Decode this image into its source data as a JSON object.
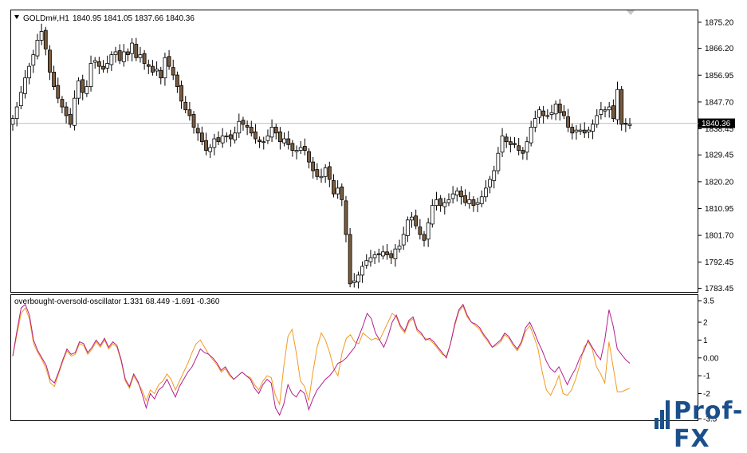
{
  "main_panel": {
    "symbol_label": "GOLDm#,H1",
    "ohlc_text": "1840.95 1841.05 1837.66 1840.36",
    "price_scale": [
      "1875.20",
      "1866.20",
      "1856.95",
      "1847.70",
      "1838.45",
      "1829.45",
      "1820.20",
      "1810.95",
      "1801.70",
      "1792.45",
      "1783.45"
    ],
    "current_price_label": "1840.36",
    "current_price": 1840.36,
    "ylim": [
      1782.2,
      1879.3
    ]
  },
  "indicator_panel": {
    "label": "overbought-oversold-oscillator 1.331 68.449 -1.691 -0.360",
    "scale": [
      "3.5",
      "2",
      "1",
      "0.00",
      "-1",
      "-2",
      "-3.5"
    ],
    "ylim": [
      -3.5,
      3.3
    ]
  },
  "logo": {
    "text": "Prof-FX",
    "color": "#1a4f8a"
  },
  "colors": {
    "bull_body": "#ffffff",
    "bear_body": "#7a5c40",
    "candle_outline": "#000000",
    "line1": "#b0208c",
    "line2": "#f29a1e",
    "grid_line": "#c0c0c0"
  },
  "chart_data": [
    {
      "type": "candlestick",
      "title": "GOLDm#,H1",
      "ylim": [
        1782.2,
        1879.3
      ],
      "y_ticks": [
        1875.2,
        1866.2,
        1856.95,
        1847.7,
        1838.45,
        1829.45,
        1820.2,
        1810.95,
        1801.7,
        1792.45,
        1783.45
      ],
      "close": [
        1842,
        1846,
        1851,
        1856,
        1860,
        1864,
        1869,
        1872,
        1866,
        1858,
        1853,
        1849,
        1846,
        1843,
        1840,
        1849,
        1855,
        1851,
        1853,
        1861,
        1862,
        1860,
        1859,
        1861,
        1864,
        1865,
        1862,
        1865,
        1864,
        1868,
        1863,
        1864,
        1861,
        1860,
        1858,
        1859,
        1856,
        1863,
        1860,
        1857,
        1853,
        1848,
        1845,
        1843,
        1839,
        1837,
        1834,
        1831,
        1832,
        1835,
        1834,
        1836,
        1836,
        1835,
        1837,
        1841,
        1840,
        1839,
        1837,
        1835,
        1834,
        1834,
        1836,
        1839,
        1837,
        1834,
        1835,
        1833,
        1831,
        1831,
        1832,
        1831,
        1827,
        1824,
        1822,
        1822,
        1825,
        1821,
        1816,
        1818,
        1814,
        1802,
        1785,
        1786,
        1788,
        1791,
        1793,
        1794,
        1795,
        1795,
        1796,
        1795,
        1794,
        1797,
        1798,
        1802,
        1807,
        1808,
        1805,
        1802,
        1800,
        1806,
        1812,
        1814,
        1812,
        1813,
        1814,
        1816,
        1817,
        1815,
        1813,
        1814,
        1812,
        1813,
        1815,
        1818,
        1821,
        1824,
        1830,
        1836,
        1834,
        1833,
        1833,
        1831,
        1830,
        1834,
        1839,
        1842,
        1845,
        1843,
        1843,
        1844,
        1847,
        1844,
        1843,
        1839,
        1837,
        1838,
        1838,
        1837,
        1838,
        1840,
        1843,
        1845,
        1845,
        1846,
        1842,
        1852,
        1840,
        1840,
        1840
      ]
    },
    {
      "type": "line",
      "title": "overbought-oversold-oscillator",
      "ylim": [
        -3.5,
        3.3
      ],
      "series": [
        {
          "name": "",
          "color": "#b0208c",
          "values": [
            0.1,
            1.5,
            2.8,
            3.0,
            2.4,
            1.0,
            0.4,
            0.0,
            -0.4,
            -1.2,
            -1.4,
            -0.8,
            -0.1,
            0.5,
            0.2,
            0.3,
            0.9,
            0.8,
            0.3,
            0.6,
            1.0,
            0.7,
            1.1,
            0.6,
            0.9,
            0.7,
            -0.1,
            -1.2,
            -1.6,
            -0.9,
            -1.3,
            -2.0,
            -2.8,
            -2.0,
            -2.3,
            -1.8,
            -1.6,
            -1.2,
            -1.7,
            -2.2,
            -1.6,
            -1.2,
            -0.8,
            -0.5,
            0.0,
            0.5,
            0.3,
            0.2,
            0.0,
            -0.3,
            -0.7,
            -0.5,
            -0.9,
            -1.2,
            -1.0,
            -0.8,
            -1.0,
            -1.2,
            -1.7,
            -2.0,
            -1.5,
            -1.2,
            -1.4,
            -2.8,
            -3.2,
            -2.6,
            -1.5,
            -2.0,
            -2.2,
            -1.8,
            -2.0,
            -2.9,
            -2.3,
            -1.8,
            -1.5,
            -1.2,
            -1.0,
            -0.7,
            -0.3,
            -0.2,
            0.0,
            0.3,
            0.6,
            1.2,
            1.8,
            2.5,
            2.2,
            1.4,
            1.0,
            0.6,
            1.2,
            2.0,
            2.4,
            1.8,
            1.5,
            2.1,
            2.3,
            1.6,
            1.4,
            1.0,
            1.1,
            0.9,
            0.6,
            0.3,
            0.0,
            0.8,
            1.9,
            2.7,
            3.0,
            2.4,
            2.0,
            1.9,
            1.7,
            1.3,
            1.0,
            0.6,
            0.8,
            1.0,
            1.4,
            1.2,
            0.8,
            0.5,
            0.9,
            1.7,
            2.0,
            1.5,
            0.9,
            0.4,
            -0.2,
            -0.6,
            -0.8,
            -0.5,
            -1.0,
            -1.5,
            -1.0,
            -0.6,
            0.0,
            0.4,
            1.0,
            0.6,
            0.2,
            -0.1,
            1.0,
            2.7,
            1.8,
            0.5,
            0.2,
            -0.1,
            -0.3
          ]
        },
        {
          "name": "",
          "color": "#f29a1e",
          "values": [
            0.1,
            1.3,
            2.5,
            2.8,
            2.2,
            0.8,
            0.3,
            -0.1,
            -0.6,
            -1.4,
            -1.6,
            -0.9,
            -0.2,
            0.4,
            0.1,
            0.2,
            0.8,
            0.7,
            0.2,
            0.5,
            0.9,
            0.6,
            1.0,
            0.5,
            0.8,
            0.6,
            -0.2,
            -1.3,
            -1.7,
            -1.0,
            -1.4,
            -1.8,
            -2.4,
            -1.8,
            -2.0,
            -1.5,
            -1.3,
            -0.9,
            -1.2,
            -1.8,
            -1.3,
            -0.8,
            -0.3,
            0.3,
            0.8,
            1.0,
            0.6,
            0.2,
            -0.1,
            -0.4,
            -0.8,
            -0.6,
            -1.0,
            -1.2,
            -1.0,
            -0.8,
            -1.0,
            -1.1,
            -1.5,
            -1.8,
            -1.3,
            -1.0,
            -1.1,
            -2.1,
            -2.6,
            -0.5,
            1.2,
            1.6,
            0.3,
            -1.3,
            -1.6,
            -2.4,
            -0.8,
            0.6,
            1.4,
            1.0,
            0.3,
            -0.6,
            -1.0,
            0.3,
            1.1,
            1.3,
            0.9,
            0.8,
            1.4,
            1.2,
            1.0,
            1.1,
            1.0,
            1.5,
            2.0,
            2.5,
            2.3,
            1.7,
            1.4,
            2.0,
            2.2,
            1.5,
            1.3,
            1.1,
            1.0,
            0.8,
            0.5,
            0.2,
            0.1,
            0.8,
            1.8,
            2.6,
            2.9,
            2.3,
            2.0,
            1.8,
            1.6,
            1.2,
            0.9,
            0.6,
            0.7,
            0.9,
            1.3,
            1.1,
            0.7,
            0.4,
            0.8,
            1.5,
            1.8,
            1.2,
            0.5,
            -0.8,
            -1.8,
            -2.1,
            -1.6,
            -1.0,
            -2.0,
            -2.1,
            -1.8,
            -1.2,
            -0.4,
            0.6,
            0.9,
            0.5,
            -0.5,
            -0.9,
            -1.4,
            0.9,
            -0.5,
            -1.9,
            -1.9,
            -1.8,
            -1.7
          ]
        }
      ]
    }
  ]
}
